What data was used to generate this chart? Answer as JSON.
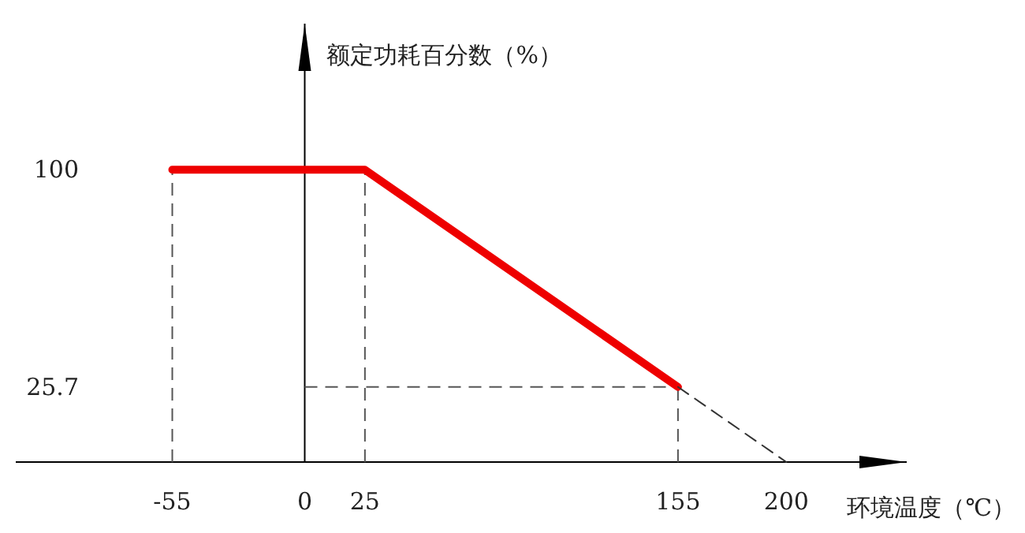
{
  "chart_data": {
    "type": "line",
    "xlabel": "环境温度（℃）",
    "ylabel": "额定功耗百分数（%）",
    "xlim": [
      -120,
      250
    ],
    "ylim": [
      0,
      150
    ],
    "xticks": [
      -55,
      0,
      25,
      155,
      200
    ],
    "yticks": [
      100,
      25.7
    ],
    "series": [
      {
        "color": "#ee0000",
        "x": [
          -55,
          25,
          155
        ],
        "values": [
          100,
          100,
          25.7
        ]
      },
      {
        "color": "#333333",
        "line_style": "dashed",
        "x": [
          155,
          200
        ],
        "values": [
          25.7,
          0
        ]
      }
    ],
    "ref_lines": [
      {
        "axis": "x",
        "value": -55,
        "color": "#555555",
        "line_style": "dashed"
      },
      {
        "axis": "x",
        "value": 25,
        "color": "#555555",
        "line_style": "dashed"
      },
      {
        "axis": "x",
        "value": 155,
        "color": "#555555",
        "line_style": "dashed"
      },
      {
        "axis": "y",
        "value": 25.7,
        "color": "#555555",
        "line_style": "dashed"
      }
    ]
  }
}
